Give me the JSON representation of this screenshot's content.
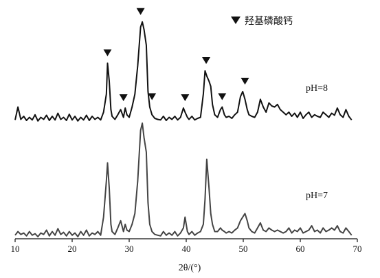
{
  "chart_data": {
    "type": "line",
    "xlabel": "2θ/(°)",
    "xlim": [
      10,
      70
    ],
    "x_ticks": [
      10,
      20,
      30,
      40,
      50,
      60,
      70
    ],
    "legend": {
      "marker": "down-triangle",
      "label": "羟基磷酸钙",
      "placement": "top-right"
    },
    "series": [
      {
        "name": "pH=8",
        "color": "#111111",
        "x": [
          10.0,
          10.5,
          11.0,
          11.5,
          12.0,
          12.5,
          13.0,
          13.5,
          14.0,
          14.5,
          15.0,
          15.5,
          16.0,
          16.5,
          17.0,
          17.5,
          18.0,
          18.5,
          19.0,
          19.5,
          20.0,
          20.5,
          21.0,
          21.5,
          22.0,
          22.5,
          23.0,
          23.5,
          24.0,
          24.5,
          25.0,
          25.5,
          26.0,
          26.2,
          26.5,
          26.8,
          27.0,
          27.5,
          28.0,
          28.5,
          29.0,
          29.3,
          29.6,
          30.0,
          30.5,
          31.0,
          31.5,
          32.0,
          32.3,
          32.6,
          33.0,
          33.3,
          33.6,
          34.0,
          34.5,
          35.0,
          35.5,
          36.0,
          36.5,
          37.0,
          37.5,
          38.0,
          38.5,
          39.0,
          39.5,
          39.8,
          40.2,
          40.5,
          41.0,
          41.5,
          42.0,
          42.5,
          43.0,
          43.3,
          43.6,
          44.0,
          44.3,
          44.6,
          45.0,
          45.5,
          46.0,
          46.3,
          46.7,
          47.0,
          47.5,
          48.0,
          48.5,
          49.0,
          49.5,
          49.9,
          50.3,
          50.7,
          51.0,
          51.5,
          52.0,
          52.5,
          53.0,
          53.5,
          54.0,
          54.5,
          55.0,
          55.5,
          56.0,
          56.5,
          57.0,
          57.5,
          58.0,
          58.5,
          59.0,
          59.5,
          60.0,
          60.5,
          61.0,
          61.5,
          62.0,
          62.5,
          63.0,
          63.5,
          64.0,
          64.5,
          65.0,
          65.5,
          66.0,
          66.5,
          67.0,
          67.5,
          68.0,
          68.5,
          69.0
        ],
        "y": [
          0.05,
          0.3,
          0.06,
          0.12,
          0.04,
          0.1,
          0.05,
          0.15,
          0.03,
          0.1,
          0.06,
          0.14,
          0.04,
          0.12,
          0.05,
          0.18,
          0.06,
          0.1,
          0.04,
          0.16,
          0.05,
          0.12,
          0.03,
          0.1,
          0.05,
          0.14,
          0.04,
          0.12,
          0.06,
          0.1,
          0.05,
          0.2,
          0.55,
          1.15,
          0.8,
          0.25,
          0.12,
          0.06,
          0.15,
          0.25,
          0.1,
          0.28,
          0.15,
          0.1,
          0.3,
          0.55,
          1.1,
          1.85,
          1.95,
          1.8,
          1.5,
          0.6,
          0.3,
          0.15,
          0.08,
          0.06,
          0.05,
          0.12,
          0.04,
          0.1,
          0.06,
          0.12,
          0.05,
          0.1,
          0.28,
          0.2,
          0.1,
          0.06,
          0.12,
          0.05,
          0.08,
          0.1,
          0.55,
          1.0,
          0.9,
          0.8,
          0.7,
          0.35,
          0.15,
          0.1,
          0.25,
          0.3,
          0.15,
          0.1,
          0.12,
          0.08,
          0.15,
          0.2,
          0.5,
          0.6,
          0.45,
          0.25,
          0.15,
          0.12,
          0.1,
          0.2,
          0.45,
          0.3,
          0.2,
          0.38,
          0.32,
          0.3,
          0.35,
          0.25,
          0.2,
          0.15,
          0.2,
          0.12,
          0.18,
          0.1,
          0.2,
          0.08,
          0.15,
          0.2,
          0.1,
          0.15,
          0.12,
          0.1,
          0.2,
          0.15,
          0.1,
          0.18,
          0.14,
          0.28,
          0.15,
          0.1,
          0.25,
          0.12,
          0.05
        ]
      },
      {
        "name": "pH=7",
        "color": "#444444",
        "x": [
          10.0,
          10.5,
          11.0,
          11.5,
          12.0,
          12.5,
          13.0,
          13.5,
          14.0,
          14.5,
          15.0,
          15.5,
          16.0,
          16.5,
          17.0,
          17.5,
          18.0,
          18.5,
          19.0,
          19.5,
          20.0,
          20.5,
          21.0,
          21.5,
          22.0,
          22.5,
          23.0,
          23.5,
          24.0,
          24.5,
          25.0,
          25.5,
          26.0,
          26.2,
          26.5,
          26.8,
          27.0,
          27.5,
          28.0,
          28.5,
          29.0,
          29.3,
          29.6,
          30.0,
          30.5,
          31.0,
          31.5,
          32.0,
          32.3,
          32.6,
          33.0,
          33.3,
          33.6,
          34.0,
          34.5,
          35.0,
          35.5,
          36.0,
          36.5,
          37.0,
          37.5,
          38.0,
          38.5,
          39.0,
          39.5,
          39.8,
          40.2,
          40.5,
          41.0,
          41.5,
          42.0,
          42.5,
          43.0,
          43.3,
          43.6,
          44.0,
          44.3,
          44.6,
          45.0,
          45.5,
          46.0,
          46.3,
          46.7,
          47.0,
          47.5,
          48.0,
          48.5,
          49.0,
          49.5,
          49.9,
          50.3,
          50.7,
          51.0,
          51.5,
          52.0,
          52.5,
          53.0,
          53.5,
          54.0,
          54.5,
          55.0,
          55.5,
          56.0,
          56.5,
          57.0,
          57.5,
          58.0,
          58.5,
          59.0,
          59.5,
          60.0,
          60.5,
          61.0,
          61.5,
          62.0,
          62.5,
          63.0,
          63.5,
          64.0,
          64.5,
          65.0,
          65.5,
          66.0,
          66.5,
          67.0,
          67.5,
          68.0,
          68.5,
          69.0
        ],
        "y": [
          0.05,
          0.1,
          0.06,
          0.08,
          0.04,
          0.1,
          0.05,
          0.07,
          0.03,
          0.08,
          0.06,
          0.12,
          0.04,
          0.1,
          0.05,
          0.14,
          0.06,
          0.09,
          0.04,
          0.1,
          0.05,
          0.08,
          0.03,
          0.1,
          0.05,
          0.12,
          0.04,
          0.08,
          0.06,
          0.1,
          0.05,
          0.3,
          0.8,
          1.05,
          0.7,
          0.2,
          0.1,
          0.06,
          0.15,
          0.25,
          0.1,
          0.2,
          0.12,
          0.1,
          0.2,
          0.35,
          0.8,
          1.5,
          1.6,
          1.4,
          1.2,
          0.5,
          0.2,
          0.1,
          0.06,
          0.05,
          0.04,
          0.1,
          0.05,
          0.08,
          0.05,
          0.1,
          0.04,
          0.08,
          0.15,
          0.3,
          0.1,
          0.06,
          0.1,
          0.05,
          0.08,
          0.1,
          0.2,
          0.55,
          1.1,
          0.7,
          0.35,
          0.2,
          0.1,
          0.1,
          0.15,
          0.12,
          0.1,
          0.08,
          0.1,
          0.08,
          0.12,
          0.15,
          0.25,
          0.3,
          0.35,
          0.25,
          0.15,
          0.1,
          0.08,
          0.15,
          0.22,
          0.12,
          0.1,
          0.15,
          0.12,
          0.1,
          0.12,
          0.1,
          0.08,
          0.1,
          0.15,
          0.08,
          0.12,
          0.1,
          0.15,
          0.08,
          0.1,
          0.12,
          0.18,
          0.1,
          0.12,
          0.08,
          0.15,
          0.1,
          0.12,
          0.15,
          0.12,
          0.18,
          0.1,
          0.08,
          0.15,
          0.1,
          0.05
        ]
      }
    ],
    "markers": {
      "series": "pH=8",
      "symbol": "down-triangle",
      "x": [
        26.2,
        29.0,
        32.0,
        34.0,
        39.8,
        43.5,
        46.3,
        50.3
      ]
    }
  }
}
